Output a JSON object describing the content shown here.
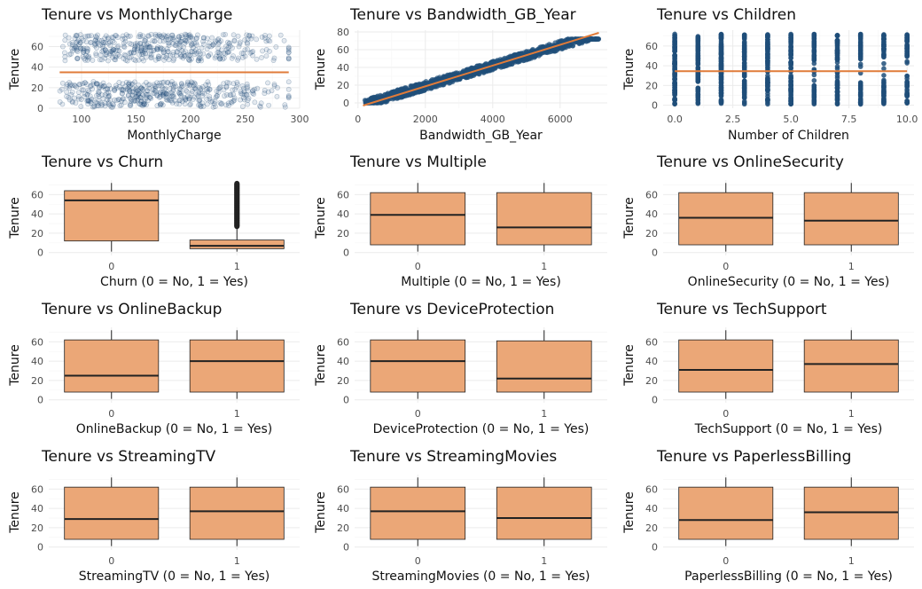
{
  "colors": {
    "point": "#1f4e79",
    "line": "#e07b39",
    "box_fill": "#eba777",
    "box_stroke": "#222222"
  },
  "chart_data": [
    {
      "type": "scatter",
      "title": "Tenure vs MonthlyCharge",
      "xlabel": "MonthlyCharge",
      "ylabel": "Tenure",
      "xlim": [
        70,
        300
      ],
      "ylim": [
        0,
        76
      ],
      "xticks": [
        100,
        150,
        200,
        250,
        300
      ],
      "yticks": [
        0,
        20,
        40,
        60
      ],
      "x_range_points": [
        80,
        290
      ],
      "y_groups": [
        [
          1,
          26
        ],
        [
          46,
          72
        ]
      ],
      "trend_line": {
        "x": [
          80,
          290
        ],
        "y": [
          35,
          35
        ]
      },
      "grid": true
    },
    {
      "type": "scatter",
      "title": "Tenure vs Bandwidth_GB_Year",
      "xlabel": "Bandwidth_GB_Year",
      "ylabel": "Tenure",
      "xlim": [
        -100,
        7400
      ],
      "ylim": [
        -6,
        82
      ],
      "xticks": [
        0,
        2000,
        4000,
        6000
      ],
      "yticks": [
        0,
        20,
        40,
        60,
        80
      ],
      "trend_line": {
        "x": [
          150,
          7150
        ],
        "y": [
          -3,
          79
        ]
      },
      "grid": true
    },
    {
      "type": "scatter",
      "title": "Tenure vs Children",
      "xlabel": "Number of Children",
      "ylabel": "Tenure",
      "xlim": [
        -0.5,
        10.3
      ],
      "ylim": [
        -3,
        76
      ],
      "xticks": [
        0.0,
        2.5,
        5.0,
        7.5,
        10.0
      ],
      "yticks": [
        0,
        20,
        40,
        60
      ],
      "x_values": [
        0,
        1,
        2,
        3,
        4,
        5,
        6,
        7,
        8,
        9,
        10
      ],
      "trend_line": {
        "x": [
          0,
          10
        ],
        "y": [
          34.5,
          34.5
        ]
      },
      "grid": true
    },
    {
      "type": "box",
      "title": "Tenure vs Churn",
      "xlabel": "Churn (0 = No, 1 = Yes)",
      "ylabel": "Tenure",
      "categories": [
        "0",
        "1"
      ],
      "ylim": [
        -3,
        75
      ],
      "yticks": [
        0,
        20,
        40,
        60
      ],
      "boxes": [
        {
          "whisker_low": 1,
          "q1": 12,
          "median": 54,
          "q3": 64,
          "whisker_high": 72
        },
        {
          "whisker_low": 1,
          "q1": 4,
          "median": 7,
          "q3": 13,
          "whisker_high": 26,
          "outliers_range": [
            27,
            72
          ]
        }
      ],
      "grid": true
    },
    {
      "type": "box",
      "title": "Tenure vs Multiple",
      "xlabel": "Multiple (0 = No, 1 = Yes)",
      "ylabel": "Tenure",
      "categories": [
        "0",
        "1"
      ],
      "ylim": [
        -3,
        75
      ],
      "yticks": [
        0,
        20,
        40,
        60
      ],
      "boxes": [
        {
          "whisker_low": 1,
          "q1": 8,
          "median": 39,
          "q3": 62,
          "whisker_high": 72
        },
        {
          "whisker_low": 1,
          "q1": 8,
          "median": 26,
          "q3": 62,
          "whisker_high": 72
        }
      ],
      "grid": true
    },
    {
      "type": "box",
      "title": "Tenure vs OnlineSecurity",
      "xlabel": "OnlineSecurity (0 = No, 1 = Yes)",
      "ylabel": "Tenure",
      "categories": [
        "0",
        "1"
      ],
      "ylim": [
        -3,
        75
      ],
      "yticks": [
        0,
        20,
        40,
        60
      ],
      "boxes": [
        {
          "whisker_low": 1,
          "q1": 8,
          "median": 36,
          "q3": 62,
          "whisker_high": 72
        },
        {
          "whisker_low": 1,
          "q1": 8,
          "median": 33,
          "q3": 62,
          "whisker_high": 72
        }
      ],
      "grid": true
    },
    {
      "type": "box",
      "title": "Tenure vs OnlineBackup",
      "xlabel": "OnlineBackup (0 = No, 1 = Yes)",
      "ylabel": "Tenure",
      "categories": [
        "0",
        "1"
      ],
      "ylim": [
        -3,
        75
      ],
      "yticks": [
        0,
        20,
        40,
        60
      ],
      "boxes": [
        {
          "whisker_low": 1,
          "q1": 8,
          "median": 25,
          "q3": 62,
          "whisker_high": 72
        },
        {
          "whisker_low": 1,
          "q1": 8,
          "median": 40,
          "q3": 62,
          "whisker_high": 72
        }
      ],
      "grid": true
    },
    {
      "type": "box",
      "title": "Tenure vs DeviceProtection",
      "xlabel": "DeviceProtection (0 = No, 1 = Yes)",
      "ylabel": "Tenure",
      "categories": [
        "0",
        "1"
      ],
      "ylim": [
        -3,
        75
      ],
      "yticks": [
        0,
        20,
        40,
        60
      ],
      "boxes": [
        {
          "whisker_low": 1,
          "q1": 8,
          "median": 40,
          "q3": 62,
          "whisker_high": 72
        },
        {
          "whisker_low": 1,
          "q1": 8,
          "median": 22,
          "q3": 61,
          "whisker_high": 72
        }
      ],
      "grid": true
    },
    {
      "type": "box",
      "title": "Tenure vs TechSupport",
      "xlabel": "TechSupport (0 = No, 1 = Yes)",
      "ylabel": "Tenure",
      "categories": [
        "0",
        "1"
      ],
      "ylim": [
        -3,
        75
      ],
      "yticks": [
        0,
        20,
        40,
        60
      ],
      "boxes": [
        {
          "whisker_low": 1,
          "q1": 8,
          "median": 31,
          "q3": 62,
          "whisker_high": 72
        },
        {
          "whisker_low": 1,
          "q1": 8,
          "median": 37,
          "q3": 62,
          "whisker_high": 72
        }
      ],
      "grid": true
    },
    {
      "type": "box",
      "title": "Tenure vs StreamingTV",
      "xlabel": "StreamingTV (0 = No, 1 = Yes)",
      "ylabel": "Tenure",
      "categories": [
        "0",
        "1"
      ],
      "ylim": [
        -3,
        75
      ],
      "yticks": [
        0,
        20,
        40,
        60
      ],
      "boxes": [
        {
          "whisker_low": 1,
          "q1": 8,
          "median": 29,
          "q3": 62,
          "whisker_high": 72
        },
        {
          "whisker_low": 1,
          "q1": 8,
          "median": 37,
          "q3": 62,
          "whisker_high": 72
        }
      ],
      "grid": true
    },
    {
      "type": "box",
      "title": "Tenure vs StreamingMovies",
      "xlabel": "StreamingMovies (0 = No, 1 = Yes)",
      "ylabel": "Tenure",
      "categories": [
        "0",
        "1"
      ],
      "ylim": [
        -3,
        75
      ],
      "yticks": [
        0,
        20,
        40,
        60
      ],
      "boxes": [
        {
          "whisker_low": 1,
          "q1": 8,
          "median": 37,
          "q3": 62,
          "whisker_high": 72
        },
        {
          "whisker_low": 1,
          "q1": 8,
          "median": 30,
          "q3": 62,
          "whisker_high": 72
        }
      ],
      "grid": true
    },
    {
      "type": "box",
      "title": "Tenure vs PaperlessBilling",
      "xlabel": "PaperlessBilling (0 = No, 1 = Yes)",
      "ylabel": "Tenure",
      "categories": [
        "0",
        "1"
      ],
      "ylim": [
        -3,
        75
      ],
      "yticks": [
        0,
        20,
        40,
        60
      ],
      "boxes": [
        {
          "whisker_low": 1,
          "q1": 8,
          "median": 28,
          "q3": 62,
          "whisker_high": 72
        },
        {
          "whisker_low": 1,
          "q1": 8,
          "median": 36,
          "q3": 62,
          "whisker_high": 72
        }
      ],
      "grid": true
    }
  ]
}
